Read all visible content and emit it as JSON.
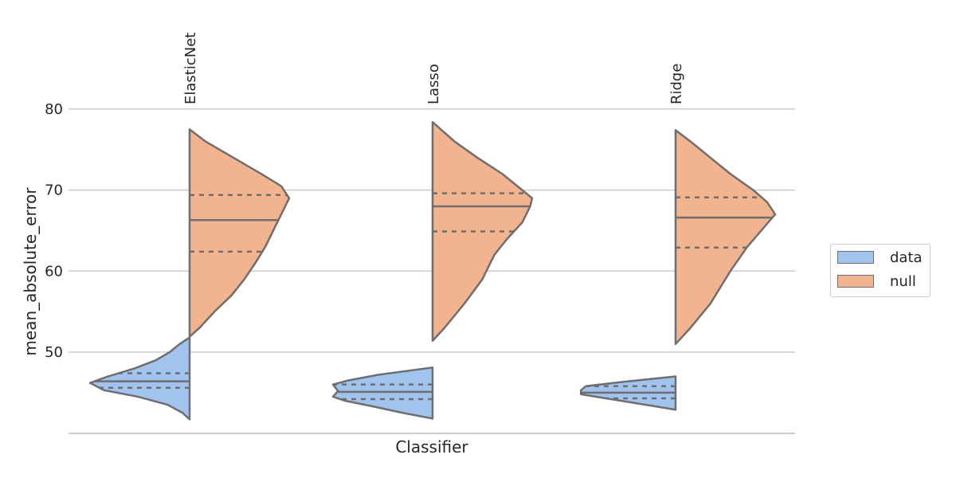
{
  "chart_data": {
    "type": "violin",
    "xlabel": "Classifier",
    "ylabel": "mean_absolute_error",
    "categories": [
      "ElasticNet",
      "Lasso",
      "Ridge"
    ],
    "ylim": [
      40,
      86
    ],
    "yticks": [
      50,
      60,
      70,
      80
    ],
    "grid": "horizontal",
    "split": true,
    "inner": "quartile",
    "legend_position": "right",
    "series": [
      {
        "name": "data",
        "color": "#a1c4ee",
        "side": "left",
        "groups": [
          {
            "min": 41.7,
            "max": 51.8,
            "q1": 45.6,
            "median": 46.4,
            "q3": 47.4,
            "profile": [
              [
                41.7,
                0
              ],
              [
                42.5,
                0.07
              ],
              [
                43.5,
                0.22
              ],
              [
                44.5,
                0.52
              ],
              [
                45.3,
                0.86
              ],
              [
                46.2,
                1.0
              ],
              [
                47.0,
                0.82
              ],
              [
                48.0,
                0.55
              ],
              [
                49.0,
                0.34
              ],
              [
                50.0,
                0.2
              ],
              [
                51.0,
                0.1
              ],
              [
                51.8,
                0
              ]
            ]
          },
          {
            "min": 41.8,
            "max": 48.1,
            "q1": 44.2,
            "median": 45.1,
            "q3": 46.0,
            "profile": [
              [
                41.8,
                0
              ],
              [
                42.5,
                0.3
              ],
              [
                43.3,
                0.6
              ],
              [
                44.0,
                0.88
              ],
              [
                44.5,
                1.0
              ],
              [
                45.2,
                0.95
              ],
              [
                46.0,
                1.0
              ],
              [
                46.5,
                0.85
              ],
              [
                47.2,
                0.55
              ],
              [
                48.1,
                0
              ]
            ]
          },
          {
            "min": 42.9,
            "max": 47.0,
            "q1": 44.3,
            "median": 45.0,
            "q3": 45.8,
            "profile": [
              [
                42.9,
                0
              ],
              [
                43.5,
                0.3
              ],
              [
                44.3,
                0.7
              ],
              [
                44.8,
                0.95
              ],
              [
                45.3,
                0.95
              ],
              [
                45.8,
                0.9
              ],
              [
                46.3,
                0.55
              ],
              [
                47.0,
                0
              ]
            ]
          }
        ]
      },
      {
        "name": "null",
        "color": "#f2b48e",
        "side": "right",
        "groups": [
          {
            "min": 51.9,
            "max": 77.5,
            "q1": 62.4,
            "median": 66.3,
            "q3": 69.4,
            "profile": [
              [
                51.9,
                0
              ],
              [
                53,
                0.1
              ],
              [
                55,
                0.25
              ],
              [
                57,
                0.42
              ],
              [
                59,
                0.55
              ],
              [
                61,
                0.66
              ],
              [
                63,
                0.76
              ],
              [
                65,
                0.84
              ],
              [
                67,
                0.92
              ],
              [
                69,
                1.0
              ],
              [
                70.5,
                0.92
              ],
              [
                72,
                0.72
              ],
              [
                74,
                0.44
              ],
              [
                76,
                0.16
              ],
              [
                77.5,
                0
              ]
            ]
          },
          {
            "min": 51.4,
            "max": 78.4,
            "q1": 64.9,
            "median": 68.0,
            "q3": 69.6,
            "profile": [
              [
                51.4,
                0
              ],
              [
                53,
                0.12
              ],
              [
                56,
                0.32
              ],
              [
                59,
                0.5
              ],
              [
                62,
                0.62
              ],
              [
                64,
                0.75
              ],
              [
                66,
                0.9
              ],
              [
                68,
                0.98
              ],
              [
                69,
                1.0
              ],
              [
                70,
                0.9
              ],
              [
                72,
                0.7
              ],
              [
                74,
                0.45
              ],
              [
                76,
                0.22
              ],
              [
                78.4,
                0
              ]
            ]
          },
          {
            "min": 51.0,
            "max": 77.4,
            "q1": 62.9,
            "median": 66.6,
            "q3": 69.1,
            "profile": [
              [
                51.0,
                0
              ],
              [
                53,
                0.15
              ],
              [
                56,
                0.35
              ],
              [
                60,
                0.55
              ],
              [
                63,
                0.72
              ],
              [
                65,
                0.86
              ],
              [
                67,
                1.0
              ],
              [
                68.5,
                0.92
              ],
              [
                70,
                0.78
              ],
              [
                72,
                0.55
              ],
              [
                74,
                0.35
              ],
              [
                76,
                0.15
              ],
              [
                77.4,
                0
              ]
            ]
          }
        ]
      }
    ]
  }
}
